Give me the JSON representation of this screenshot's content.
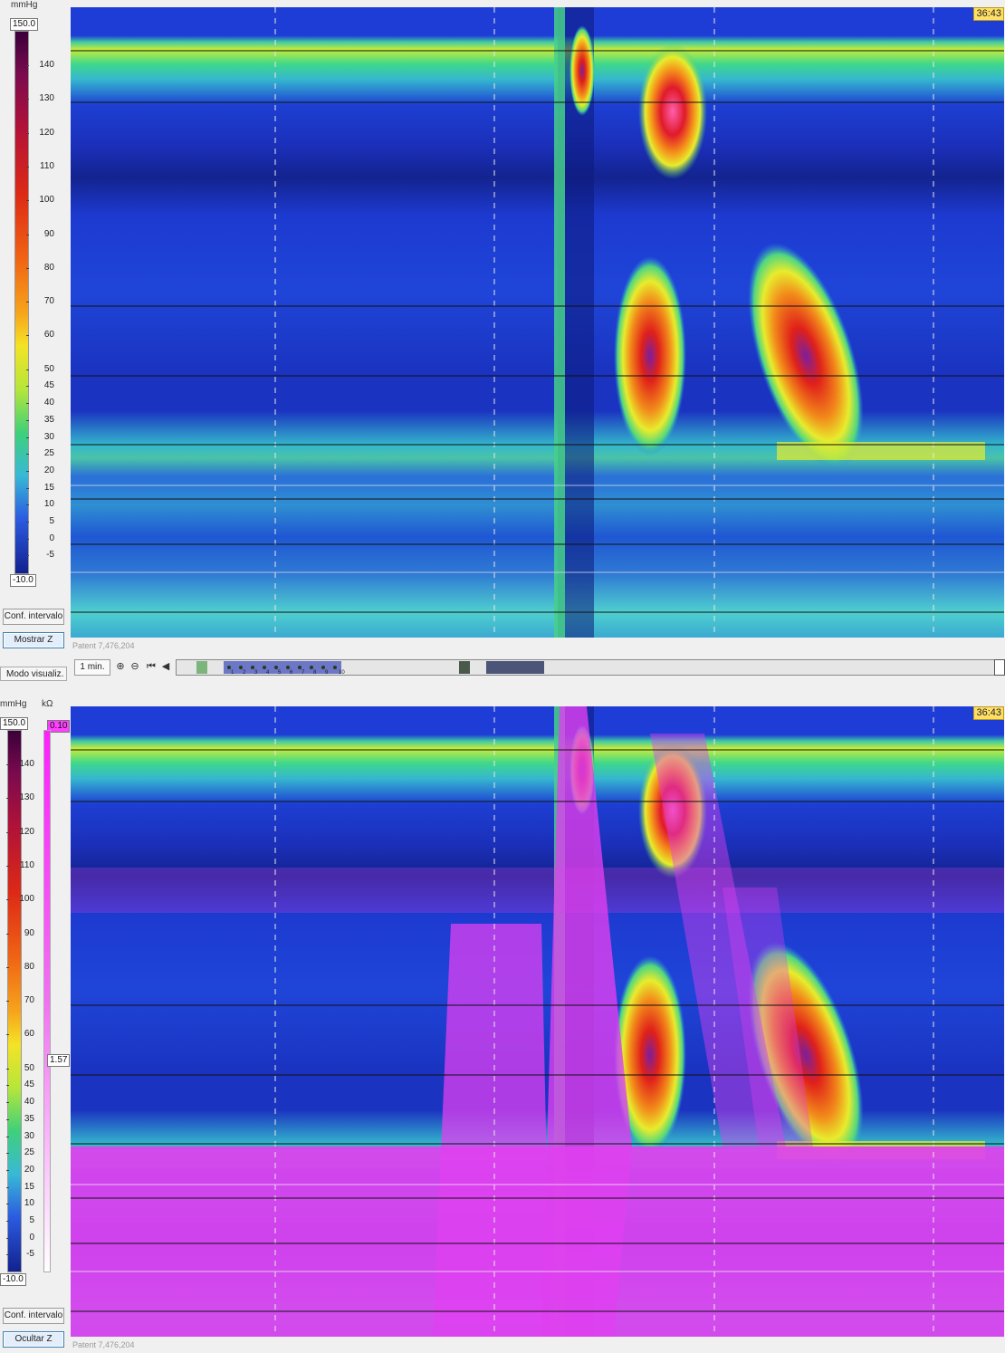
{
  "top_panel": {
    "pressure_unit": "mmHg",
    "scale_max": "150.0",
    "scale_min": "-10.0",
    "ticks": [
      "140",
      "130",
      "120",
      "110",
      "100",
      "90",
      "80",
      "70",
      "60",
      "50",
      "45",
      "40",
      "35",
      "30",
      "25",
      "20",
      "15",
      "10",
      "5",
      "0",
      "-5"
    ],
    "button_range": "Conf. intervalo",
    "button_toggle": "Mostrar Z",
    "time_badge": "36:43",
    "patent": "Patent 7,476,204"
  },
  "toolbar": {
    "mode_label": "Modo visualiz.",
    "zoom_label": "1 min.",
    "icons": [
      "zoom-in-icon",
      "zoom-out-icon",
      "skip-start-icon",
      "step-back-icon"
    ],
    "markers": [
      "1",
      "2",
      "3",
      "4",
      "5",
      "6",
      "7",
      "8",
      "9",
      "10"
    ]
  },
  "bottom_panel": {
    "pressure_unit": "mmHg",
    "impedance_unit": "kΩ",
    "scale_max": "150.0",
    "scale_min": "-10.0",
    "impedance_max": "0.10",
    "impedance_min": "1.57",
    "ticks": [
      "140",
      "130",
      "120",
      "110",
      "100",
      "90",
      "80",
      "70",
      "60",
      "50",
      "45",
      "40",
      "35",
      "30",
      "25",
      "20",
      "15",
      "10",
      "5",
      "0",
      "-5"
    ],
    "button_range": "Conf. intervalo",
    "button_toggle": "Ocultar Z",
    "time_badge": "36:43",
    "patent": "Patent 7,476,204"
  },
  "colors": {
    "impedance_overlay": "#e040f0",
    "time_badge": "#ffe066",
    "toggle_active_border": "#3c7fb1"
  }
}
